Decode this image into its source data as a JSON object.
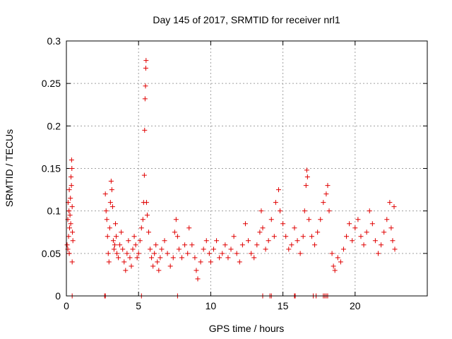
{
  "chart_data": {
    "type": "scatter",
    "title": "Day 145 of 2017, SRMTID for receiver nrl1",
    "xlabel": "GPS time / hours",
    "ylabel": "SRMTID / TECUs",
    "xlim": [
      0,
      25
    ],
    "ylim": [
      0,
      0.3
    ],
    "xticks": [
      "0",
      "5",
      "10",
      "15",
      "20"
    ],
    "yticks": [
      "0",
      "0.05",
      "0.1",
      "0.15",
      "0.2",
      "0.25",
      "0.3"
    ],
    "grid": true,
    "marker": "plus",
    "color": "#e00000",
    "points": [
      [
        0.05,
        0.06
      ],
      [
        0.1,
        0.09
      ],
      [
        0.12,
        0.11
      ],
      [
        0.15,
        0.07
      ],
      [
        0.18,
        0.1
      ],
      [
        0.2,
        0.125
      ],
      [
        0.22,
        0.08
      ],
      [
        0.25,
        0.095
      ],
      [
        0.28,
        0.115
      ],
      [
        0.3,
        0.085
      ],
      [
        0.32,
        0.14
      ],
      [
        0.35,
        0.13
      ],
      [
        0.36,
        0.16
      ],
      [
        0.38,
        0.15
      ],
      [
        0.4,
        0.105
      ],
      [
        0.42,
        0.075
      ],
      [
        0.45,
        0.065
      ],
      [
        0.4,
        0.04
      ],
      [
        0.2,
        0.05
      ],
      [
        0.1,
        0.055
      ],
      [
        2.7,
        0.12
      ],
      [
        2.75,
        0.1
      ],
      [
        2.8,
        0.09
      ],
      [
        2.85,
        0.07
      ],
      [
        2.9,
        0.05
      ],
      [
        2.95,
        0.04
      ],
      [
        3.0,
        0.08
      ],
      [
        3.05,
        0.11
      ],
      [
        3.1,
        0.135
      ],
      [
        3.15,
        0.125
      ],
      [
        3.2,
        0.105
      ],
      [
        3.25,
        0.065
      ],
      [
        3.3,
        0.055
      ],
      [
        3.35,
        0.06
      ],
      [
        3.4,
        0.085
      ],
      [
        3.45,
        0.07
      ],
      [
        3.5,
        0.05
      ],
      [
        3.6,
        0.045
      ],
      [
        3.7,
        0.06
      ],
      [
        3.8,
        0.075
      ],
      [
        3.9,
        0.055
      ],
      [
        4.0,
        0.04
      ],
      [
        4.1,
        0.03
      ],
      [
        4.2,
        0.05
      ],
      [
        4.3,
        0.065
      ],
      [
        4.4,
        0.045
      ],
      [
        4.5,
        0.035
      ],
      [
        4.6,
        0.055
      ],
      [
        4.7,
        0.07
      ],
      [
        4.8,
        0.06
      ],
      [
        4.9,
        0.045
      ],
      [
        5.0,
        0.05
      ],
      [
        5.1,
        0.065
      ],
      [
        5.2,
        0.08
      ],
      [
        5.3,
        0.09
      ],
      [
        5.35,
        0.11
      ],
      [
        5.4,
        0.142
      ],
      [
        5.42,
        0.195
      ],
      [
        5.45,
        0.232
      ],
      [
        5.48,
        0.247
      ],
      [
        5.5,
        0.268
      ],
      [
        5.52,
        0.277
      ],
      [
        5.55,
        0.11
      ],
      [
        5.6,
        0.095
      ],
      [
        5.7,
        0.075
      ],
      [
        5.8,
        0.055
      ],
      [
        5.9,
        0.045
      ],
      [
        6.0,
        0.035
      ],
      [
        6.1,
        0.05
      ],
      [
        6.2,
        0.06
      ],
      [
        6.3,
        0.04
      ],
      [
        6.4,
        0.03
      ],
      [
        6.5,
        0.045
      ],
      [
        6.6,
        0.055
      ],
      [
        6.8,
        0.065
      ],
      [
        7.0,
        0.05
      ],
      [
        7.2,
        0.035
      ],
      [
        7.4,
        0.045
      ],
      [
        7.5,
        0.075
      ],
      [
        7.6,
        0.09
      ],
      [
        7.7,
        0.07
      ],
      [
        7.8,
        0.055
      ],
      [
        8.0,
        0.045
      ],
      [
        8.2,
        0.06
      ],
      [
        8.4,
        0.05
      ],
      [
        8.5,
        0.08
      ],
      [
        8.7,
        0.06
      ],
      [
        8.9,
        0.045
      ],
      [
        9.0,
        0.03
      ],
      [
        9.1,
        0.02
      ],
      [
        9.3,
        0.04
      ],
      [
        9.5,
        0.055
      ],
      [
        9.7,
        0.065
      ],
      [
        9.9,
        0.05
      ],
      [
        10.0,
        0.04
      ],
      [
        10.2,
        0.055
      ],
      [
        10.4,
        0.065
      ],
      [
        10.6,
        0.045
      ],
      [
        10.8,
        0.05
      ],
      [
        11.0,
        0.06
      ],
      [
        11.2,
        0.045
      ],
      [
        11.4,
        0.055
      ],
      [
        11.6,
        0.07
      ],
      [
        11.8,
        0.05
      ],
      [
        12.0,
        0.04
      ],
      [
        12.2,
        0.06
      ],
      [
        12.4,
        0.085
      ],
      [
        12.6,
        0.065
      ],
      [
        12.8,
        0.05
      ],
      [
        13.0,
        0.045
      ],
      [
        13.2,
        0.06
      ],
      [
        13.4,
        0.075
      ],
      [
        13.5,
        0.1
      ],
      [
        13.6,
        0.08
      ],
      [
        13.8,
        0.055
      ],
      [
        14.0,
        0.065
      ],
      [
        14.2,
        0.09
      ],
      [
        14.4,
        0.07
      ],
      [
        14.5,
        0.11
      ],
      [
        14.7,
        0.125
      ],
      [
        14.8,
        0.1
      ],
      [
        15.0,
        0.085
      ],
      [
        15.2,
        0.07
      ],
      [
        15.4,
        0.055
      ],
      [
        15.6,
        0.06
      ],
      [
        15.8,
        0.08
      ],
      [
        16.0,
        0.065
      ],
      [
        16.2,
        0.05
      ],
      [
        16.4,
        0.07
      ],
      [
        16.5,
        0.1
      ],
      [
        16.6,
        0.13
      ],
      [
        16.65,
        0.148
      ],
      [
        16.7,
        0.14
      ],
      [
        16.8,
        0.09
      ],
      [
        17.0,
        0.07
      ],
      [
        17.2,
        0.06
      ],
      [
        17.4,
        0.075
      ],
      [
        17.6,
        0.09
      ],
      [
        17.8,
        0.11
      ],
      [
        18.0,
        0.12
      ],
      [
        18.1,
        0.13
      ],
      [
        18.2,
        0.1
      ],
      [
        18.4,
        0.05
      ],
      [
        18.5,
        0.035
      ],
      [
        18.6,
        0.03
      ],
      [
        18.8,
        0.045
      ],
      [
        19.0,
        0.04
      ],
      [
        19.2,
        0.055
      ],
      [
        19.4,
        0.07
      ],
      [
        19.6,
        0.085
      ],
      [
        19.8,
        0.065
      ],
      [
        20.0,
        0.08
      ],
      [
        20.2,
        0.09
      ],
      [
        20.4,
        0.07
      ],
      [
        20.6,
        0.06
      ],
      [
        20.8,
        0.075
      ],
      [
        21.0,
        0.1
      ],
      [
        21.2,
        0.085
      ],
      [
        21.4,
        0.065
      ],
      [
        21.6,
        0.05
      ],
      [
        21.8,
        0.06
      ],
      [
        22.0,
        0.075
      ],
      [
        22.2,
        0.09
      ],
      [
        22.4,
        0.11
      ],
      [
        22.5,
        0.08
      ],
      [
        22.6,
        0.065
      ],
      [
        22.7,
        0.105
      ],
      [
        22.75,
        0.055
      ],
      [
        0.4,
        0.0
      ],
      [
        2.65,
        0.0
      ],
      [
        2.7,
        0.0
      ],
      [
        5.2,
        0.0
      ],
      [
        7.7,
        0.0
      ],
      [
        13.6,
        0.0
      ],
      [
        14.1,
        0.0
      ],
      [
        14.2,
        0.0
      ],
      [
        15.8,
        0.0
      ],
      [
        15.85,
        0.0
      ],
      [
        17.1,
        0.0
      ],
      [
        17.3,
        0.0
      ],
      [
        17.8,
        0.0
      ],
      [
        17.9,
        0.0
      ],
      [
        18.0,
        0.0
      ],
      [
        18.1,
        0.0
      ]
    ]
  }
}
